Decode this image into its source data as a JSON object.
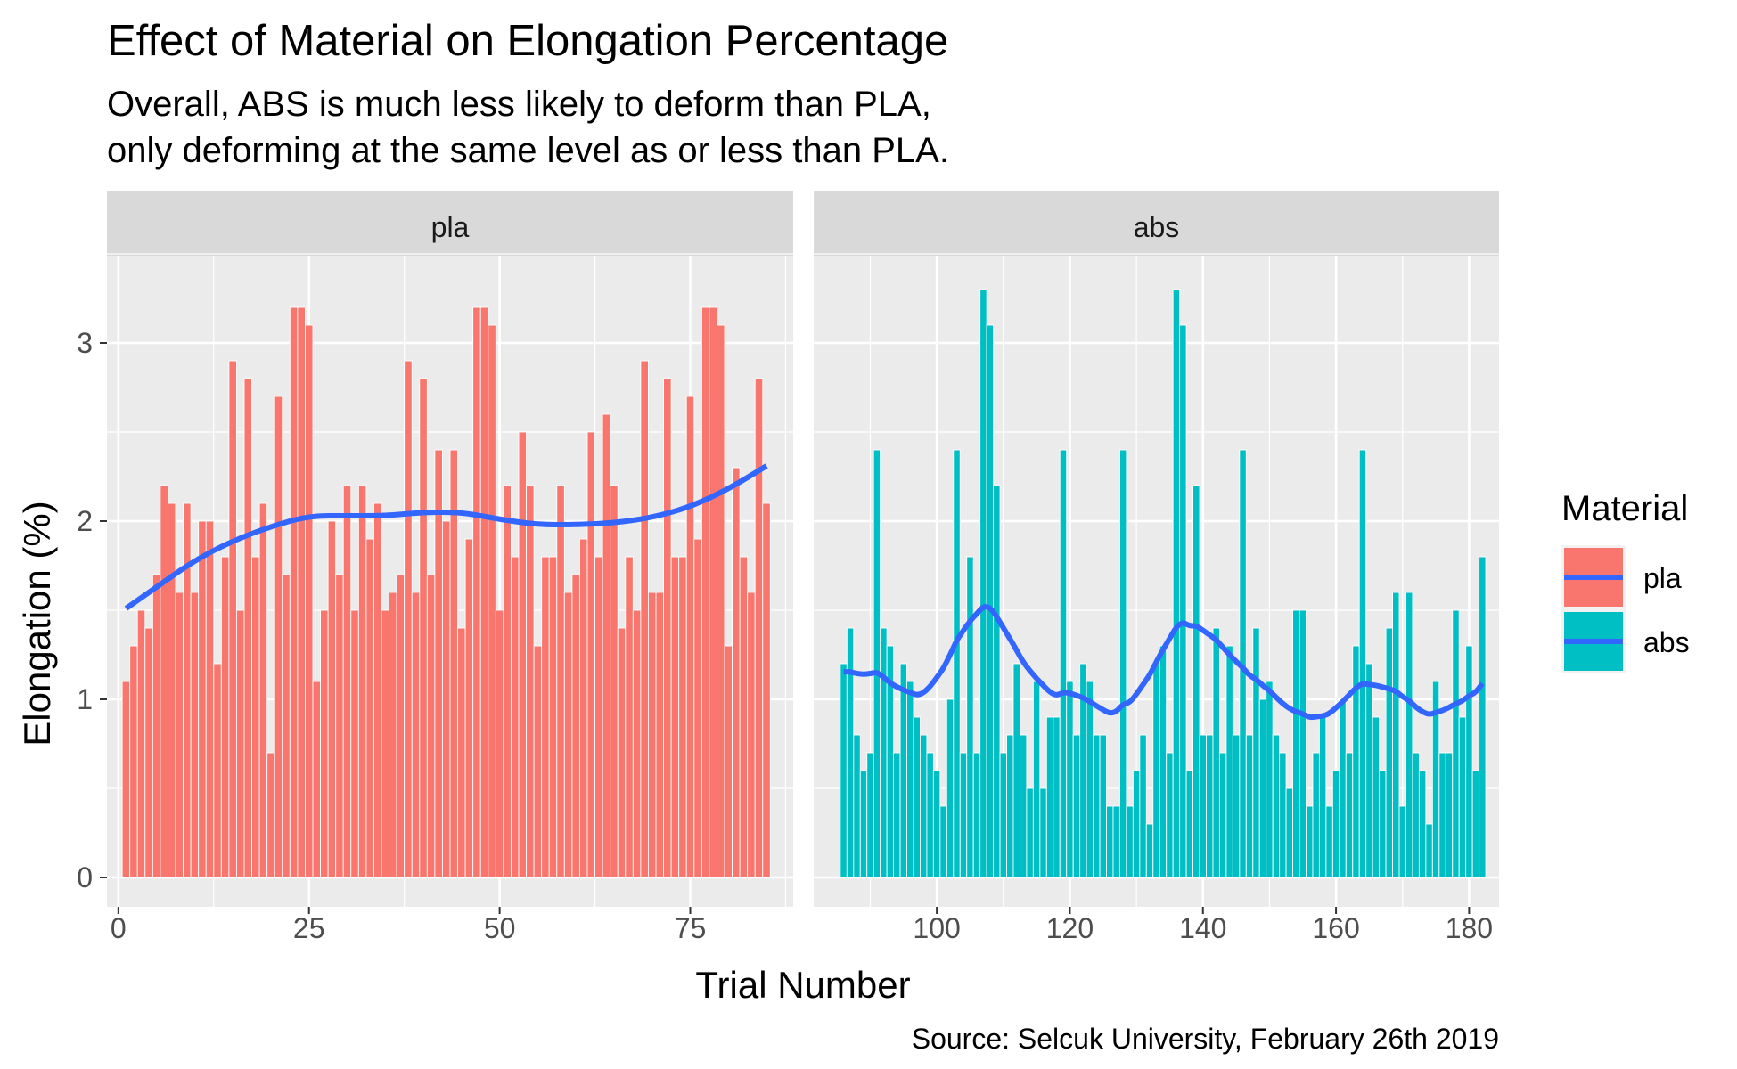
{
  "chart_data": {
    "type": "bar",
    "title": "Effect of Material on Elongation Percentage",
    "subtitle_lines": [
      "Overall, ABS is much less likely to deform than PLA,",
      "only deforming at the same level as or less than PLA."
    ],
    "caption": "Source: Selcuk University, February 26th 2019",
    "xlabel": "Trial Number",
    "ylabel": "Elongation (%)",
    "ylim": [
      0,
      3.5
    ],
    "y_ticks": [
      0,
      1,
      2,
      3
    ],
    "grid": true,
    "legend": {
      "title": "Material",
      "placement": "right",
      "entries": [
        {
          "label": "pla",
          "color": "#F8766D"
        },
        {
          "label": "abs",
          "color": "#00BFC4"
        }
      ]
    },
    "smooth_color": "#3366FF",
    "panels": [
      {
        "name": "pla",
        "color": "#F8766D",
        "xlim": [
          -1.5,
          88.5
        ],
        "x_ticks": [
          0,
          25,
          50,
          75
        ],
        "x_start": 1,
        "values": [
          1.1,
          1.3,
          1.5,
          1.4,
          1.7,
          2.2,
          2.1,
          1.6,
          2.1,
          1.6,
          2.0,
          2.0,
          1.2,
          1.8,
          2.9,
          1.5,
          2.8,
          1.8,
          2.1,
          0.7,
          2.7,
          1.7,
          3.2,
          3.2,
          3.1,
          1.1,
          1.5,
          2.0,
          1.7,
          2.2,
          1.5,
          2.2,
          1.9,
          2.1,
          1.5,
          1.6,
          1.7,
          2.9,
          1.6,
          2.8,
          1.7,
          2.4,
          2.0,
          2.4,
          1.4,
          1.9,
          3.2,
          3.2,
          3.1,
          1.5,
          2.2,
          1.8,
          2.5,
          2.2,
          1.3,
          1.8,
          1.8,
          2.2,
          1.6,
          1.7,
          1.9,
          2.5,
          1.8,
          2.6,
          2.2,
          1.4,
          1.8,
          1.5,
          2.9,
          1.6,
          1.6,
          2.8,
          1.8,
          1.8,
          2.7,
          1.9,
          3.2,
          3.2,
          3.1,
          1.3,
          2.3,
          1.8,
          1.6,
          2.8,
          2.1
        ],
        "smooth": [
          [
            1,
            1.51
          ],
          [
            5,
            1.63
          ],
          [
            10,
            1.78
          ],
          [
            15,
            1.89
          ],
          [
            20,
            1.97
          ],
          [
            25,
            2.03
          ],
          [
            30,
            2.03
          ],
          [
            35,
            2.03
          ],
          [
            40,
            2.05
          ],
          [
            45,
            2.05
          ],
          [
            50,
            2.01
          ],
          [
            55,
            1.98
          ],
          [
            60,
            1.98
          ],
          [
            65,
            1.99
          ],
          [
            70,
            2.02
          ],
          [
            75,
            2.08
          ],
          [
            80,
            2.18
          ],
          [
            85,
            2.31
          ]
        ]
      },
      {
        "name": "abs",
        "color": "#00BFC4",
        "xlim": [
          81.5,
          184.5
        ],
        "x_ticks": [
          100,
          120,
          140,
          160,
          180
        ],
        "x_start": 86,
        "values": [
          1.2,
          1.4,
          0.8,
          0.6,
          0.7,
          2.4,
          1.4,
          1.3,
          0.7,
          1.2,
          1.1,
          0.9,
          0.8,
          0.7,
          0.6,
          0.4,
          1.0,
          2.4,
          0.7,
          1.8,
          0.7,
          3.3,
          3.1,
          2.2,
          0.7,
          0.8,
          1.2,
          0.8,
          0.5,
          1.1,
          0.5,
          0.9,
          0.9,
          2.4,
          1.1,
          0.8,
          1.2,
          1.1,
          0.8,
          0.8,
          0.4,
          0.4,
          2.4,
          0.4,
          0.6,
          0.8,
          0.3,
          1.2,
          1.3,
          0.7,
          3.3,
          3.1,
          0.6,
          2.2,
          0.8,
          0.8,
          1.4,
          0.7,
          1.3,
          0.8,
          2.4,
          0.8,
          1.4,
          1.0,
          1.1,
          0.8,
          0.7,
          0.5,
          1.5,
          1.5,
          0.4,
          0.7,
          0.9,
          0.4,
          0.6,
          1.0,
          0.7,
          1.3,
          2.4,
          1.2,
          0.9,
          0.6,
          1.4,
          1.6,
          0.4,
          1.6,
          0.7,
          0.6,
          0.3,
          1.1,
          0.7,
          0.7,
          1.5,
          0.9,
          1.3,
          0.6,
          1.8
        ]
      }
    ]
  }
}
